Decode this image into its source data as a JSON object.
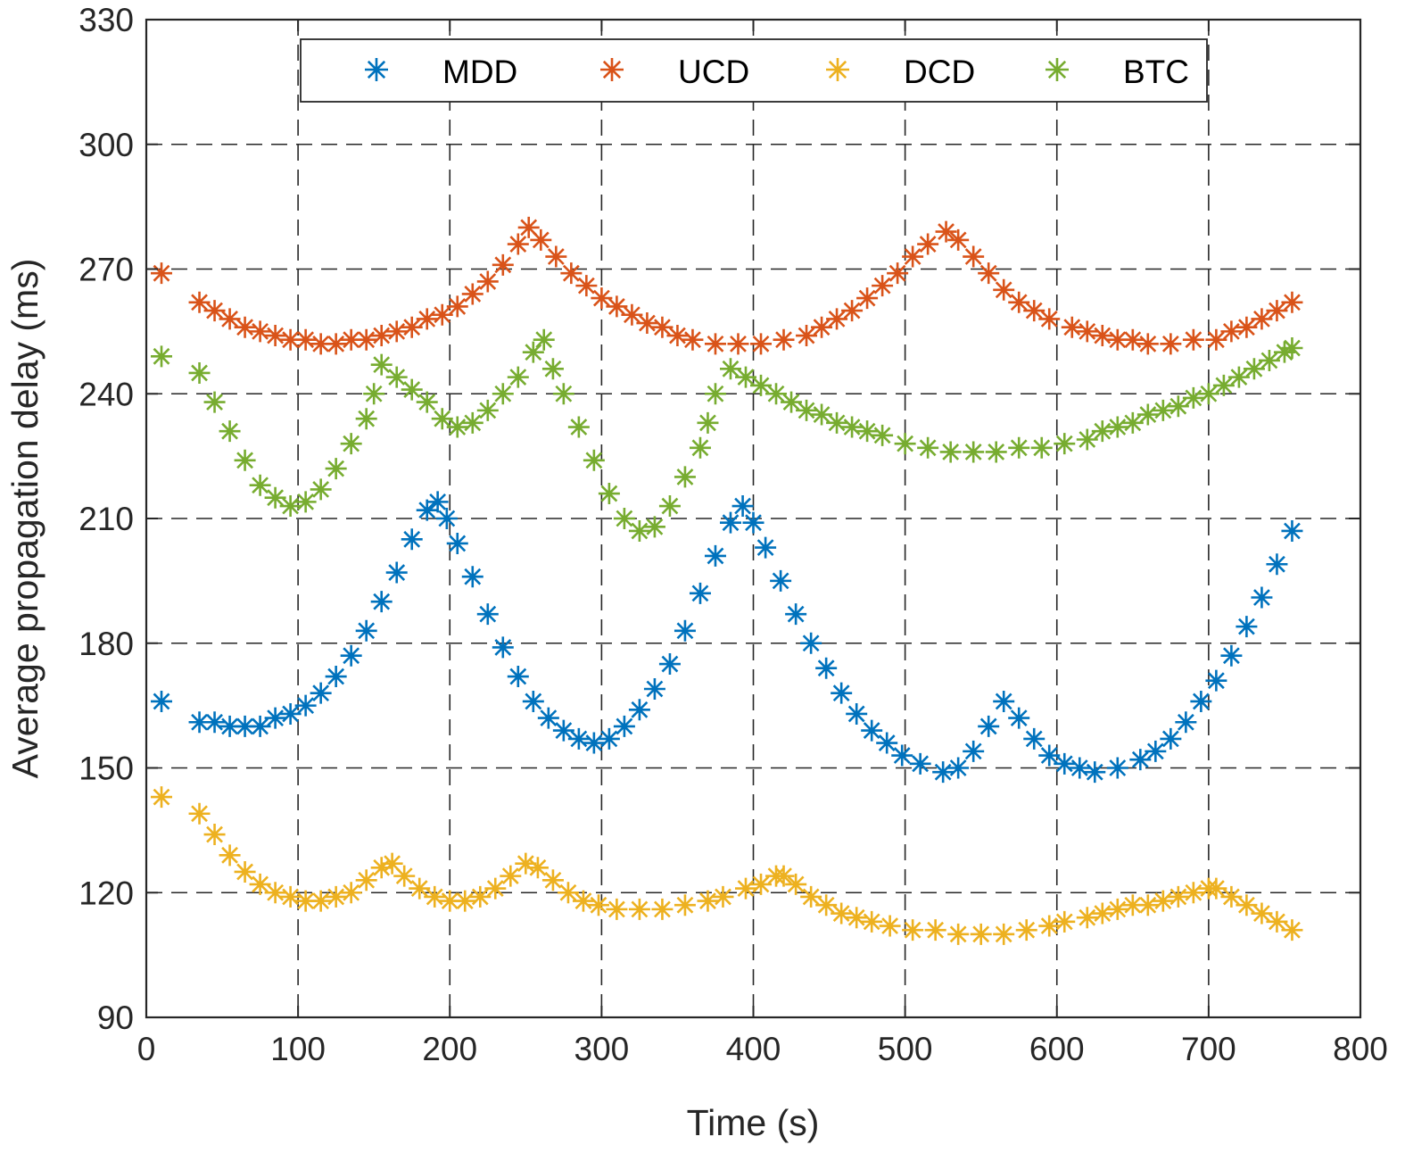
{
  "chart_data": {
    "type": "scatter",
    "title": "",
    "xlabel": "Time (s)",
    "ylabel": "Average propagation delay (ms)",
    "xlim": [
      0,
      800
    ],
    "ylim": [
      90,
      330
    ],
    "xticks": [
      0,
      100,
      200,
      300,
      400,
      500,
      600,
      700,
      800
    ],
    "yticks": [
      90,
      120,
      150,
      180,
      210,
      240,
      270,
      300,
      330
    ],
    "grid": true,
    "legend_position": "top",
    "legend_orientation": "horizontal",
    "marker": "asterisk",
    "series": [
      {
        "name": "MDD",
        "color": "#0072BD",
        "points": [
          [
            10,
            166
          ],
          [
            35,
            161
          ],
          [
            45,
            161
          ],
          [
            55,
            160
          ],
          [
            65,
            160
          ],
          [
            75,
            160
          ],
          [
            85,
            162
          ],
          [
            95,
            163
          ],
          [
            105,
            165
          ],
          [
            115,
            168
          ],
          [
            125,
            172
          ],
          [
            135,
            177
          ],
          [
            145,
            183
          ],
          [
            155,
            190
          ],
          [
            165,
            197
          ],
          [
            175,
            205
          ],
          [
            185,
            212
          ],
          [
            192,
            214
          ],
          [
            198,
            210
          ],
          [
            205,
            204
          ],
          [
            215,
            196
          ],
          [
            225,
            187
          ],
          [
            235,
            179
          ],
          [
            245,
            172
          ],
          [
            255,
            166
          ],
          [
            265,
            162
          ],
          [
            275,
            159
          ],
          [
            285,
            157
          ],
          [
            295,
            156
          ],
          [
            305,
            157
          ],
          [
            315,
            160
          ],
          [
            325,
            164
          ],
          [
            335,
            169
          ],
          [
            345,
            175
          ],
          [
            355,
            183
          ],
          [
            365,
            192
          ],
          [
            375,
            201
          ],
          [
            385,
            209
          ],
          [
            393,
            213
          ],
          [
            400,
            209
          ],
          [
            408,
            203
          ],
          [
            418,
            195
          ],
          [
            428,
            187
          ],
          [
            438,
            180
          ],
          [
            448,
            174
          ],
          [
            458,
            168
          ],
          [
            468,
            163
          ],
          [
            478,
            159
          ],
          [
            488,
            156
          ],
          [
            498,
            153
          ],
          [
            510,
            151
          ],
          [
            525,
            149
          ],
          [
            535,
            150
          ],
          [
            545,
            154
          ],
          [
            555,
            160
          ],
          [
            565,
            166
          ],
          [
            575,
            162
          ],
          [
            585,
            157
          ],
          [
            595,
            153
          ],
          [
            605,
            151
          ],
          [
            615,
            150
          ],
          [
            625,
            149
          ],
          [
            640,
            150
          ],
          [
            655,
            152
          ],
          [
            665,
            154
          ],
          [
            675,
            157
          ],
          [
            685,
            161
          ],
          [
            695,
            166
          ],
          [
            705,
            171
          ],
          [
            715,
            177
          ],
          [
            725,
            184
          ],
          [
            735,
            191
          ],
          [
            745,
            199
          ],
          [
            755,
            207
          ]
        ]
      },
      {
        "name": "UCD",
        "color": "#D95319",
        "points": [
          [
            10,
            269
          ],
          [
            35,
            262
          ],
          [
            45,
            260
          ],
          [
            55,
            258
          ],
          [
            65,
            256
          ],
          [
            75,
            255
          ],
          [
            85,
            254
          ],
          [
            95,
            253
          ],
          [
            105,
            253
          ],
          [
            115,
            252
          ],
          [
            125,
            252
          ],
          [
            135,
            253
          ],
          [
            145,
            253
          ],
          [
            155,
            254
          ],
          [
            165,
            255
          ],
          [
            175,
            256
          ],
          [
            185,
            258
          ],
          [
            195,
            259
          ],
          [
            205,
            261
          ],
          [
            215,
            264
          ],
          [
            225,
            267
          ],
          [
            235,
            271
          ],
          [
            245,
            276
          ],
          [
            252,
            280
          ],
          [
            260,
            277
          ],
          [
            270,
            273
          ],
          [
            280,
            269
          ],
          [
            290,
            266
          ],
          [
            300,
            263
          ],
          [
            310,
            261
          ],
          [
            320,
            259
          ],
          [
            330,
            257
          ],
          [
            340,
            256
          ],
          [
            350,
            254
          ],
          [
            360,
            253
          ],
          [
            375,
            252
          ],
          [
            390,
            252
          ],
          [
            405,
            252
          ],
          [
            420,
            253
          ],
          [
            435,
            254
          ],
          [
            445,
            256
          ],
          [
            455,
            258
          ],
          [
            465,
            260
          ],
          [
            475,
            263
          ],
          [
            485,
            266
          ],
          [
            495,
            269
          ],
          [
            505,
            273
          ],
          [
            515,
            276
          ],
          [
            527,
            279
          ],
          [
            535,
            277
          ],
          [
            545,
            273
          ],
          [
            555,
            269
          ],
          [
            565,
            265
          ],
          [
            575,
            262
          ],
          [
            585,
            260
          ],
          [
            595,
            258
          ],
          [
            610,
            256
          ],
          [
            620,
            255
          ],
          [
            630,
            254
          ],
          [
            640,
            253
          ],
          [
            650,
            253
          ],
          [
            660,
            252
          ],
          [
            675,
            252
          ],
          [
            690,
            253
          ],
          [
            705,
            253
          ],
          [
            715,
            255
          ],
          [
            725,
            256
          ],
          [
            735,
            258
          ],
          [
            745,
            260
          ],
          [
            755,
            262
          ]
        ]
      },
      {
        "name": "DCD",
        "color": "#EDB120",
        "points": [
          [
            10,
            143
          ],
          [
            35,
            139
          ],
          [
            45,
            134
          ],
          [
            55,
            129
          ],
          [
            65,
            125
          ],
          [
            75,
            122
          ],
          [
            85,
            120
          ],
          [
            95,
            119
          ],
          [
            105,
            118
          ],
          [
            115,
            118
          ],
          [
            125,
            119
          ],
          [
            135,
            120
          ],
          [
            145,
            123
          ],
          [
            155,
            126
          ],
          [
            162,
            127
          ],
          [
            170,
            124
          ],
          [
            180,
            121
          ],
          [
            190,
            119
          ],
          [
            200,
            118
          ],
          [
            210,
            118
          ],
          [
            220,
            119
          ],
          [
            230,
            121
          ],
          [
            240,
            124
          ],
          [
            250,
            127
          ],
          [
            258,
            126
          ],
          [
            268,
            123
          ],
          [
            278,
            120
          ],
          [
            288,
            118
          ],
          [
            298,
            117
          ],
          [
            310,
            116
          ],
          [
            325,
            116
          ],
          [
            340,
            116
          ],
          [
            355,
            117
          ],
          [
            370,
            118
          ],
          [
            380,
            119
          ],
          [
            395,
            121
          ],
          [
            405,
            122
          ],
          [
            415,
            124
          ],
          [
            420,
            124
          ],
          [
            428,
            122
          ],
          [
            438,
            119
          ],
          [
            448,
            117
          ],
          [
            458,
            115
          ],
          [
            468,
            114
          ],
          [
            478,
            113
          ],
          [
            490,
            112
          ],
          [
            505,
            111
          ],
          [
            520,
            111
          ],
          [
            535,
            110
          ],
          [
            550,
            110
          ],
          [
            565,
            110
          ],
          [
            580,
            111
          ],
          [
            595,
            112
          ],
          [
            605,
            113
          ],
          [
            620,
            114
          ],
          [
            630,
            115
          ],
          [
            640,
            116
          ],
          [
            650,
            117
          ],
          [
            660,
            117
          ],
          [
            670,
            118
          ],
          [
            680,
            119
          ],
          [
            690,
            120
          ],
          [
            700,
            121
          ],
          [
            705,
            121
          ],
          [
            715,
            119
          ],
          [
            725,
            117
          ],
          [
            735,
            115
          ],
          [
            745,
            113
          ],
          [
            755,
            111
          ]
        ]
      },
      {
        "name": "BTC",
        "color": "#77AC30",
        "points": [
          [
            10,
            249
          ],
          [
            35,
            245
          ],
          [
            45,
            238
          ],
          [
            55,
            231
          ],
          [
            65,
            224
          ],
          [
            75,
            218
          ],
          [
            85,
            215
          ],
          [
            95,
            213
          ],
          [
            105,
            214
          ],
          [
            115,
            217
          ],
          [
            125,
            222
          ],
          [
            135,
            228
          ],
          [
            145,
            234
          ],
          [
            150,
            240
          ],
          [
            155,
            247
          ],
          [
            165,
            244
          ],
          [
            175,
            241
          ],
          [
            185,
            238
          ],
          [
            195,
            234
          ],
          [
            205,
            232
          ],
          [
            215,
            233
          ],
          [
            225,
            236
          ],
          [
            235,
            240
          ],
          [
            245,
            244
          ],
          [
            255,
            250
          ],
          [
            262,
            253
          ],
          [
            268,
            246
          ],
          [
            275,
            240
          ],
          [
            285,
            232
          ],
          [
            295,
            224
          ],
          [
            305,
            216
          ],
          [
            315,
            210
          ],
          [
            325,
            207
          ],
          [
            335,
            208
          ],
          [
            345,
            213
          ],
          [
            355,
            220
          ],
          [
            365,
            227
          ],
          [
            370,
            233
          ],
          [
            375,
            240
          ],
          [
            385,
            246
          ],
          [
            395,
            244
          ],
          [
            405,
            242
          ],
          [
            415,
            240
          ],
          [
            425,
            238
          ],
          [
            435,
            236
          ],
          [
            445,
            235
          ],
          [
            455,
            233
          ],
          [
            465,
            232
          ],
          [
            475,
            231
          ],
          [
            485,
            230
          ],
          [
            500,
            228
          ],
          [
            515,
            227
          ],
          [
            530,
            226
          ],
          [
            545,
            226
          ],
          [
            560,
            226
          ],
          [
            575,
            227
          ],
          [
            590,
            227
          ],
          [
            605,
            228
          ],
          [
            620,
            229
          ],
          [
            630,
            231
          ],
          [
            640,
            232
          ],
          [
            650,
            233
          ],
          [
            660,
            235
          ],
          [
            670,
            236
          ],
          [
            680,
            237
          ],
          [
            690,
            239
          ],
          [
            700,
            240
          ],
          [
            710,
            242
          ],
          [
            720,
            244
          ],
          [
            730,
            246
          ],
          [
            740,
            248
          ],
          [
            750,
            250
          ],
          [
            755,
            251
          ]
        ]
      }
    ]
  }
}
